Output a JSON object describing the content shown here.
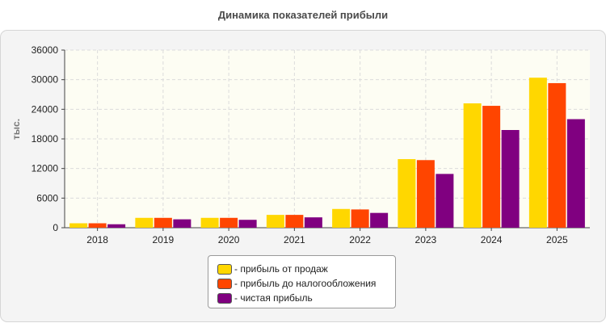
{
  "chart_data": {
    "type": "bar",
    "title": "Динамика показателей прибыли",
    "ylabel": "тыс.",
    "xlabel": "",
    "categories": [
      "2018",
      "2019",
      "2020",
      "2021",
      "2022",
      "2023",
      "2024",
      "2025"
    ],
    "series": [
      {
        "name": "прибыль от продаж",
        "color": "#ffd700",
        "values": [
          900,
          2000,
          2000,
          2600,
          3800,
          13900,
          25200,
          30400
        ]
      },
      {
        "name": "прибыль до налогообложения",
        "color": "#ff4500",
        "values": [
          900,
          2000,
          2000,
          2600,
          3700,
          13700,
          24700,
          29300
        ]
      },
      {
        "name": "чистая прибыль",
        "color": "#800080",
        "values": [
          700,
          1700,
          1600,
          2100,
          3000,
          10900,
          19800,
          22000
        ]
      }
    ],
    "yticks": [
      "0",
      "6000",
      "12000",
      "18000",
      "24000",
      "30000",
      "36000"
    ],
    "ylim": [
      0,
      36000
    ],
    "grid": true,
    "legend_position": "bottom"
  }
}
